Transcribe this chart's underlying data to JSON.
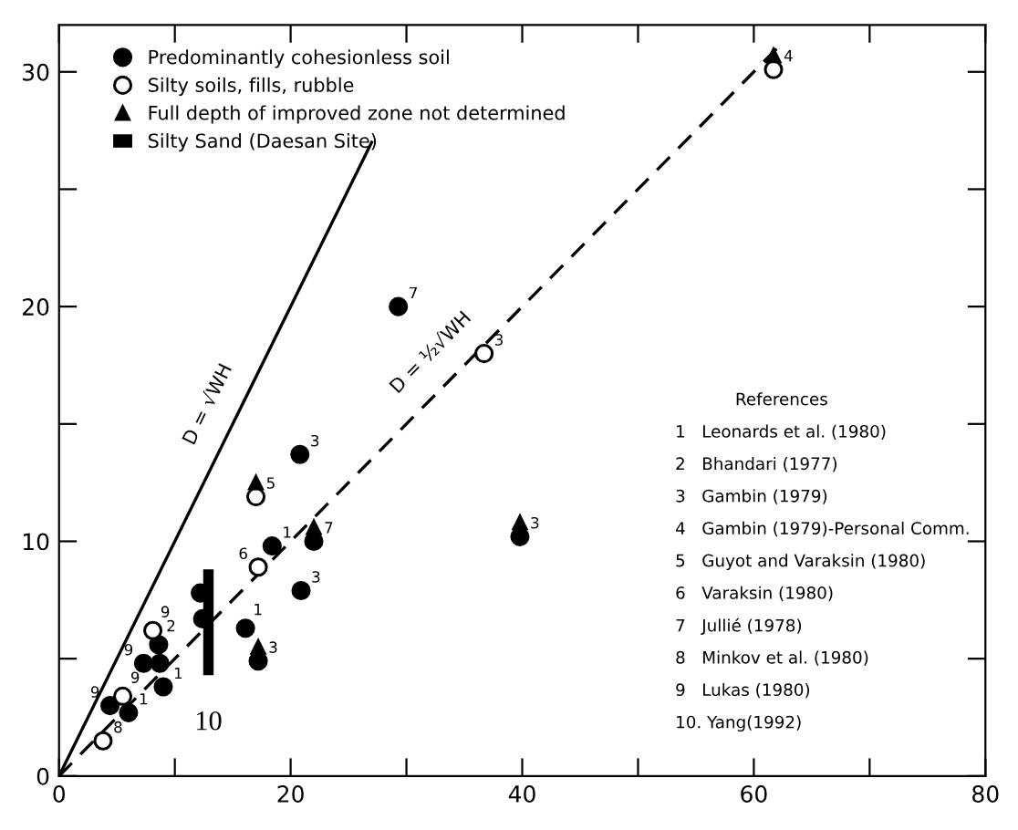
{
  "chart_data": {
    "type": "scatter",
    "xlim": [
      0,
      80
    ],
    "ylim": [
      0,
      32
    ],
    "xticks": [
      0,
      {
        "value": 10,
        "label": null
      },
      20,
      {
        "value": 30,
        "label": null
      },
      40,
      {
        "value": 50,
        "label": null
      },
      60,
      {
        "value": 70,
        "label": null
      },
      80
    ],
    "yticks": [
      0,
      {
        "value": 5,
        "label": null
      },
      10,
      {
        "value": 15,
        "label": null
      },
      20,
      {
        "value": 25,
        "label": null
      },
      30
    ],
    "legend": "top left",
    "series": [
      {
        "name": "Predominantly cohesionless soil",
        "marker": "circle",
        "color": "#000000",
        "x": [
          20.8,
          22.0,
          18.4,
          20.9,
          16.1,
          17.2,
          12.2,
          12.4,
          8.6,
          7.3,
          8.7,
          9.0,
          4.4,
          6.0,
          29.3,
          39.8
        ],
        "values": [
          13.7,
          10.0,
          9.8,
          7.9,
          6.3,
          4.9,
          7.8,
          6.7,
          5.6,
          4.8,
          4.8,
          3.8,
          3.0,
          2.7,
          20.0,
          10.2
        ]
      },
      {
        "name": "Silty soils, fills, rubble",
        "marker": "circle",
        "color": "#ffffff",
        "x": [
          17.0,
          17.2,
          8.1,
          5.5,
          3.8,
          36.7,
          61.7
        ],
        "values": [
          11.9,
          8.9,
          6.2,
          3.4,
          1.5,
          18.0,
          30.1
        ]
      },
      {
        "name": "Full depth of improved zone not determined",
        "marker": "triangle",
        "color": "#000000",
        "x": [
          22.0,
          17.2,
          39.8,
          17.0,
          61.7
        ],
        "values": [
          10.6,
          5.5,
          10.8,
          12.5,
          30.7
        ]
      },
      {
        "name": "Silty Sand (Daesan Site)",
        "type": "bar",
        "color": "#000000",
        "x": [
          12.9
        ],
        "base": [
          4.3
        ],
        "values": [
          4.5
        ]
      },
      {
        "name": "D = √WH",
        "type": "line",
        "line_style": "solid",
        "color": "#000000",
        "x": [
          0,
          27
        ],
        "values": [
          0,
          27
        ]
      },
      {
        "name": "D = ½√WH",
        "type": "line",
        "line_style": "dashed",
        "color": "#000000",
        "x": [
          0,
          62
        ],
        "values": [
          0,
          31
        ]
      }
    ],
    "annotations": [
      {
        "text": "3",
        "x": 20.8,
        "y": 13.7
      },
      {
        "text": "7",
        "x": 22.0,
        "y": 10.0
      },
      {
        "text": "1",
        "x": 18.4,
        "y": 9.8
      },
      {
        "text": "3",
        "x": 20.9,
        "y": 7.9
      },
      {
        "text": "1",
        "x": 16.1,
        "y": 6.3
      },
      {
        "text": "3",
        "x": 17.2,
        "y": 4.9
      },
      {
        "text": "2",
        "x": 8.6,
        "y": 5.6
      },
      {
        "text": "9",
        "x": 7.3,
        "y": 4.8
      },
      {
        "text": "1",
        "x": 9.0,
        "y": 3.8
      },
      {
        "text": "9",
        "x": 4.4,
        "y": 3.0
      },
      {
        "text": "1",
        "x": 6.0,
        "y": 2.7
      },
      {
        "text": "7",
        "x": 29.3,
        "y": 20.0
      },
      {
        "text": "3",
        "x": 39.8,
        "y": 10.2
      },
      {
        "text": "5",
        "x": 17.0,
        "y": 11.9
      },
      {
        "text": "6",
        "x": 17.2,
        "y": 8.9
      },
      {
        "text": "9",
        "x": 8.1,
        "y": 6.2
      },
      {
        "text": "9",
        "x": 5.5,
        "y": 3.4
      },
      {
        "text": "8",
        "x": 3.8,
        "y": 1.5
      },
      {
        "text": "3",
        "x": 36.7,
        "y": 18.0
      },
      {
        "text": "4",
        "x": 61.7,
        "y": 30.1
      },
      {
        "text": "10",
        "x": 12.9,
        "y": 4.3
      },
      "References",
      "1   Leonards et al. (1980)",
      "2   Bhandari (1977)",
      "3   Gambin (1979)",
      "4   Gambin (1979)-Personal Comm.",
      "5   Guyot and Varaksin (1980)",
      "6   Varaksin (1980)",
      "7   Jullié (1978)",
      "8   Minkov et al. (1980)",
      "9   Lukas (1980)",
      "10. Yang(1992)"
    ]
  }
}
